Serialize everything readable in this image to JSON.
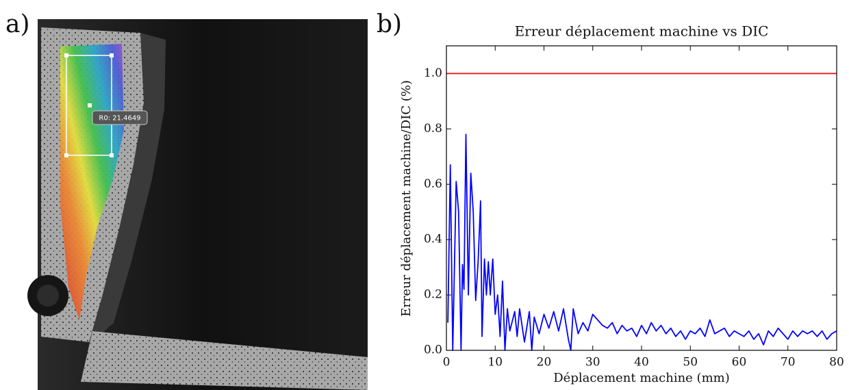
{
  "panel_labels": [
    "a)",
    "b)"
  ],
  "image_annotation": "R0: 21.4649",
  "chart_data": {
    "type": "line",
    "title": "Erreur déplacement machine vs DIC",
    "x_label": "Déplacement machine (mm)",
    "y_label": "Erreur déplacement machine/DIC (%)",
    "xlim": [
      0,
      80
    ],
    "ylim": [
      0,
      1.1
    ],
    "xticks": [
      0,
      10,
      20,
      30,
      40,
      50,
      60,
      70,
      80
    ],
    "yticks": [
      {
        "value": 0,
        "label": "0.0"
      },
      0.2,
      0.4,
      0.6,
      0.8,
      {
        "value": 1,
        "label": "1.0"
      }
    ],
    "series": [
      {
        "color": "#e41a1c",
        "x": [
          0,
          80
        ],
        "values": [
          1,
          1
        ]
      },
      {
        "color": "#0000ff",
        "x": [
          0.3,
          0.8,
          1.3,
          2,
          2.5,
          3,
          3.3,
          3.6,
          4,
          4.5,
          5,
          5.5,
          6,
          6.5,
          7,
          7.3,
          7.8,
          8.2,
          8.6,
          9,
          9.5,
          10,
          10.5,
          11,
          11.5,
          12,
          12.5,
          13,
          14,
          14.5,
          15,
          16,
          17,
          17.5,
          18,
          19,
          20,
          21,
          22,
          23,
          24,
          25,
          25.5,
          26,
          27,
          28,
          29,
          30,
          31,
          32,
          33,
          34,
          35,
          36,
          37,
          38,
          39,
          40,
          41,
          42,
          43,
          44,
          45,
          46,
          47,
          48,
          49,
          50,
          51,
          52,
          53,
          54,
          55,
          56,
          57,
          58,
          59,
          60,
          61,
          62,
          63,
          64,
          65,
          66,
          67,
          68,
          69,
          70,
          71,
          72,
          73,
          74,
          75,
          76,
          77,
          78,
          79,
          80
        ],
        "values": [
          0.1,
          0.67,
          0,
          0.61,
          0.5,
          0,
          0.31,
          0.22,
          0.78,
          0.2,
          0.64,
          0.5,
          0.18,
          0.32,
          0.54,
          0.05,
          0.33,
          0.2,
          0.32,
          0.2,
          0.33,
          0.13,
          0.2,
          0.05,
          0.25,
          0,
          0.15,
          0.07,
          0.14,
          0.05,
          0.15,
          0.03,
          0.14,
          0,
          0.12,
          0.06,
          0.13,
          0.08,
          0.14,
          0.07,
          0.15,
          0.04,
          0,
          0.15,
          0.06,
          0.1,
          0.07,
          0.13,
          0.11,
          0.09,
          0.08,
          0.1,
          0.06,
          0.09,
          0.07,
          0.08,
          0.05,
          0.09,
          0.06,
          0.1,
          0.07,
          0.09,
          0.06,
          0.08,
          0.05,
          0.07,
          0.04,
          0.07,
          0.06,
          0.08,
          0.05,
          0.11,
          0.06,
          0.07,
          0.08,
          0.05,
          0.07,
          0.06,
          0.05,
          0.07,
          0.04,
          0.06,
          0.02,
          0.07,
          0.05,
          0.08,
          0.06,
          0.04,
          0.07,
          0.05,
          0.07,
          0.06,
          0.07,
          0.05,
          0.07,
          0.04,
          0.06,
          0.07
        ]
      }
    ]
  }
}
